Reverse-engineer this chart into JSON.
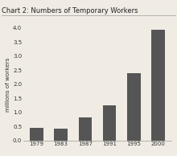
{
  "title": "Chart 2: Numbers of Temporary Workers",
  "categories": [
    "1979",
    "1983",
    "1987",
    "1991",
    "1995",
    "2000"
  ],
  "values": [
    0.46,
    0.42,
    0.83,
    1.25,
    2.4,
    3.93
  ],
  "bar_color": "#555555",
  "ylabel": "millions of workers",
  "ylim": [
    0,
    4.0
  ],
  "yticks": [
    0.0,
    0.5,
    1.0,
    1.5,
    2.0,
    2.5,
    3.0,
    3.5,
    4.0
  ],
  "background_color": "#f0ece4",
  "title_fontsize": 6.0,
  "ylabel_fontsize": 5.2,
  "tick_fontsize": 5.0
}
